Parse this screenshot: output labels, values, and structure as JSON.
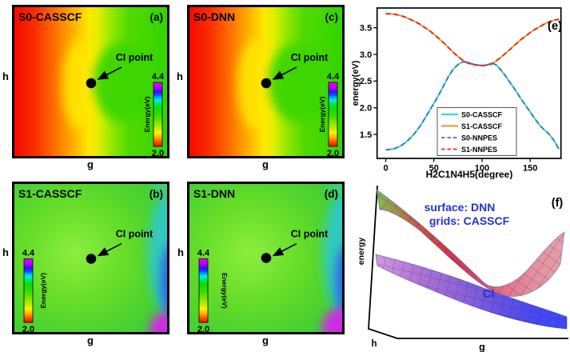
{
  "colorbar": {
    "label": "Energy(eV)",
    "max": "4.4",
    "min": "2.0",
    "colors_top_to_bottom": [
      "#f400ff",
      "#5500ff",
      "#0048ff",
      "#00b4ff",
      "#00f0d0",
      "#0ddc00",
      "#7ce400",
      "#fff400",
      "#ffb000",
      "#fc0000"
    ]
  },
  "panels": {
    "a": {
      "title": "S0-CASSCF",
      "tag": "(a)",
      "ci_label": "CI point",
      "xlabel": "g",
      "ylabel": "h"
    },
    "b": {
      "title": "S1-CASSCF",
      "tag": "(b)",
      "ci_label": "CI point",
      "xlabel": "g",
      "ylabel": "h"
    },
    "c": {
      "title": "S0-DNN",
      "tag": "(c)",
      "ci_label": "CI point",
      "xlabel": "g",
      "ylabel": "h"
    },
    "d": {
      "title": "S1-DNN",
      "tag": "(d)",
      "ci_label": "CI point",
      "xlabel": "g",
      "ylabel": "h"
    },
    "e": {
      "tag": "(e)"
    },
    "f": {
      "tag": "(f)",
      "line1": "surface: DNN",
      "line2": "grids: CASSCF",
      "ci_label": "CI",
      "xlabel": "g",
      "ylabel": "h",
      "zlabel": "energy",
      "annotation_color": "#2433cc"
    }
  },
  "chart_data": [
    {
      "id": "e",
      "type": "line",
      "xlabel": "H2C1N4H5(degree)",
      "ylabel": "energy(eV)",
      "xlim": [
        -9,
        182
      ],
      "ylim": [
        1.05,
        3.87
      ],
      "grid": false,
      "legend_position": "lower center",
      "xticks": [
        {
          "v": 0,
          "label": "0"
        },
        {
          "v": 50,
          "label": "50"
        },
        {
          "v": 100,
          "label": "100"
        },
        {
          "v": 150,
          "label": "150"
        }
      ],
      "yticks": [
        {
          "v": 1.5,
          "label": "1.5"
        },
        {
          "v": 2.0,
          "label": "2.0"
        },
        {
          "v": 2.5,
          "label": "2.5"
        },
        {
          "v": 3.0,
          "label": "3.0"
        },
        {
          "v": 3.5,
          "label": "3.5"
        }
      ],
      "x": [
        0,
        5,
        10,
        15,
        20,
        25,
        30,
        35,
        40,
        45,
        50,
        55,
        60,
        65,
        70,
        75,
        80,
        85,
        90,
        95,
        100,
        105,
        110,
        115,
        120,
        125,
        130,
        135,
        140,
        145,
        150,
        155,
        160,
        165,
        170,
        175,
        180
      ],
      "series": [
        {
          "name": "S0-CASSCF",
          "color": "#35d6e2",
          "style": "solid",
          "values": [
            1.21,
            1.22,
            1.24,
            1.28,
            1.34,
            1.42,
            1.52,
            1.64,
            1.78,
            1.93,
            2.08,
            2.24,
            2.41,
            2.58,
            2.72,
            2.81,
            2.86,
            2.85,
            2.82,
            2.8,
            2.79,
            2.8,
            2.84,
            2.8,
            2.7,
            2.58,
            2.45,
            2.32,
            2.18,
            2.05,
            1.92,
            1.79,
            1.67,
            1.58,
            1.5,
            1.38,
            1.22
          ]
        },
        {
          "name": "S1-CASSCF",
          "color": "#e2a33c",
          "style": "solid",
          "values": [
            3.76,
            3.76,
            3.75,
            3.73,
            3.7,
            3.66,
            3.62,
            3.57,
            3.51,
            3.45,
            3.38,
            3.3,
            3.22,
            3.13,
            3.04,
            2.96,
            2.89,
            2.84,
            2.81,
            2.8,
            2.79,
            2.8,
            2.82,
            2.88,
            2.95,
            3.03,
            3.11,
            3.19,
            3.27,
            3.34,
            3.41,
            3.47,
            3.52,
            3.57,
            3.61,
            3.64,
            3.66
          ]
        },
        {
          "name": "S0-NNPES",
          "color": "#3d78b2",
          "style": "dashed",
          "values": [
            1.21,
            1.22,
            1.24,
            1.28,
            1.34,
            1.42,
            1.52,
            1.64,
            1.78,
            1.93,
            2.08,
            2.24,
            2.41,
            2.58,
            2.72,
            2.81,
            2.86,
            2.85,
            2.82,
            2.8,
            2.79,
            2.8,
            2.84,
            2.8,
            2.7,
            2.58,
            2.45,
            2.32,
            2.18,
            2.05,
            1.92,
            1.79,
            1.67,
            1.58,
            1.5,
            1.38,
            1.22
          ]
        },
        {
          "name": "S1-NNPES",
          "color": "#e8271b",
          "style": "dashed",
          "values": [
            3.76,
            3.76,
            3.75,
            3.73,
            3.7,
            3.66,
            3.62,
            3.57,
            3.51,
            3.45,
            3.38,
            3.3,
            3.22,
            3.13,
            3.04,
            2.96,
            2.89,
            2.84,
            2.81,
            2.8,
            2.79,
            2.8,
            2.82,
            2.88,
            2.95,
            3.03,
            3.11,
            3.19,
            3.27,
            3.34,
            3.41,
            3.47,
            3.52,
            3.57,
            3.61,
            3.64,
            3.66
          ]
        }
      ]
    },
    {
      "id": "abcd",
      "type": "heatmap",
      "panels": [
        "S0-CASSCF",
        "S1-CASSCF",
        "S0-DNN",
        "S1-DNN"
      ],
      "axes": [
        "g",
        "h"
      ],
      "colorbar_range_eV": [
        2.0,
        4.4
      ],
      "marker": "CI point"
    },
    {
      "id": "f",
      "type": "surface3d",
      "surfaces": [
        "S1 (upper, red)",
        "S0 (lower, blue)"
      ],
      "axes": [
        "g",
        "h",
        "energy"
      ],
      "annotation": "CI"
    }
  ]
}
